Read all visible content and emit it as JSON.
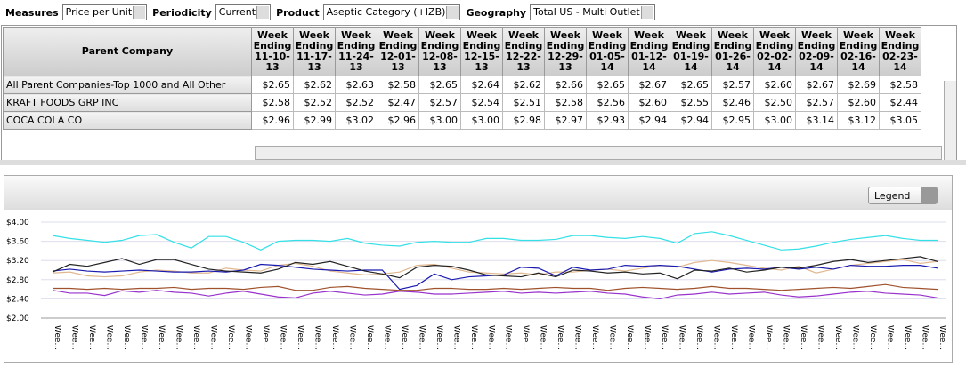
{
  "toolbar": {
    "filters": [
      {
        "label": "Measures",
        "value": "Price per Unit"
      },
      {
        "label": "Periodicity",
        "value": "Current"
      },
      {
        "label": "Product",
        "value": "Aseptic Category (+IZB)"
      },
      {
        "label": "Geography",
        "value": "Total US - Multi Outlet"
      }
    ]
  },
  "table": {
    "corner": "Parent Company",
    "columns": [
      "Week Ending 11-10-13",
      "Week Ending 11-17-13",
      "Week Ending 11-24-13",
      "Week Ending 12-01-13",
      "Week Ending 12-08-13",
      "Week Ending 12-15-13",
      "Week Ending 12-22-13",
      "Week Ending 12-29-13",
      "Week Ending 01-05-14",
      "Week Ending 01-12-14",
      "Week Ending 01-19-14",
      "Week Ending 01-26-14",
      "Week Ending 02-02-14",
      "Week Ending 02-09-14",
      "Week Ending 02-16-14",
      "Week Ending 02-23-14"
    ],
    "rows": [
      {
        "label": "All Parent Companies-Top 1000 and All Other",
        "cells": [
          "$2.65",
          "$2.62",
          "$2.63",
          "$2.58",
          "$2.65",
          "$2.64",
          "$2.62",
          "$2.66",
          "$2.65",
          "$2.67",
          "$2.65",
          "$2.57",
          "$2.60",
          "$2.67",
          "$2.69",
          "$2.58"
        ]
      },
      {
        "label": "KRAFT FOODS GRP INC",
        "cells": [
          "$2.58",
          "$2.52",
          "$2.52",
          "$2.47",
          "$2.57",
          "$2.54",
          "$2.51",
          "$2.58",
          "$2.56",
          "$2.60",
          "$2.55",
          "$2.46",
          "$2.50",
          "$2.57",
          "$2.60",
          "$2.44"
        ]
      },
      {
        "label": "COCA COLA CO",
        "cells": [
          "$2.96",
          "$2.99",
          "$3.02",
          "$2.96",
          "$3.00",
          "$3.00",
          "$2.98",
          "$2.97",
          "$2.93",
          "$2.94",
          "$2.94",
          "$2.95",
          "$3.00",
          "$3.14",
          "$3.12",
          "$3.05"
        ]
      }
    ]
  },
  "legend_button": "Legend",
  "chart_data": {
    "type": "line",
    "categories": [
      "Wee...",
      "Wee...",
      "Wee...",
      "Wee...",
      "Wee...",
      "Wee...",
      "Wee...",
      "Wee...",
      "Wee...",
      "Wee...",
      "Wee...",
      "Wee...",
      "Wee...",
      "Wee...",
      "Wee...",
      "Wee...",
      "Wee...",
      "Wee...",
      "Wee...",
      "Wee...",
      "Wee...",
      "Wee...",
      "Wee...",
      "Wee...",
      "Wee...",
      "Wee...",
      "Wee...",
      "Wee...",
      "Wee...",
      "Wee...",
      "Wee...",
      "Wee...",
      "Wee...",
      "Wee...",
      "Wee...",
      "Wee...",
      "Wee...",
      "Wee...",
      "Wee...",
      "Wee...",
      "Wee...",
      "Wee...",
      "Wee...",
      "Wee...",
      "Wee...",
      "Wee...",
      "Wee...",
      "Wee...",
      "Wee...",
      "Wee...",
      "Wee...",
      "Wee..."
    ],
    "ylim": [
      2.0,
      4.0
    ],
    "yticks": [
      {
        "value": 2.0,
        "label": "$2.00"
      },
      {
        "value": 2.4,
        "label": "$2.40"
      },
      {
        "value": 2.8,
        "label": "$2.80"
      },
      {
        "value": 3.2,
        "label": "$3.20"
      },
      {
        "value": 3.6,
        "label": "$3.60"
      },
      {
        "value": 4.0,
        "label": "$4.00"
      }
    ],
    "grid": true,
    "series": [
      {
        "color": "#33e0e6",
        "values": [
          3.72,
          3.66,
          3.62,
          3.58,
          3.62,
          3.72,
          3.74,
          3.58,
          3.46,
          3.7,
          3.7,
          3.58,
          3.42,
          3.6,
          3.62,
          3.62,
          3.6,
          3.66,
          3.56,
          3.52,
          3.5,
          3.58,
          3.6,
          3.58,
          3.58,
          3.66,
          3.66,
          3.62,
          3.62,
          3.64,
          3.72,
          3.72,
          3.68,
          3.66,
          3.7,
          3.66,
          3.56,
          3.76,
          3.8,
          3.72,
          3.62,
          3.52,
          3.42,
          3.44,
          3.5,
          3.58,
          3.64,
          3.68,
          3.72,
          3.66,
          3.62,
          3.62
        ]
      },
      {
        "color": "#e0b890",
        "values": [
          2.94,
          2.96,
          2.88,
          2.86,
          2.88,
          2.96,
          3.0,
          2.98,
          2.94,
          2.94,
          3.04,
          3.0,
          2.98,
          3.1,
          3.14,
          3.08,
          2.98,
          2.94,
          2.9,
          2.92,
          2.96,
          3.1,
          3.12,
          3.04,
          2.96,
          2.94,
          2.92,
          2.94,
          2.9,
          2.96,
          2.96,
          3.0,
          3.02,
          2.98,
          3.04,
          3.1,
          3.06,
          3.16,
          3.2,
          3.16,
          3.1,
          3.04,
          3.0,
          3.08,
          2.94,
          3.02,
          3.1,
          3.14,
          3.18,
          3.22,
          3.14,
          3.18
        ]
      },
      {
        "color": "#1a1ab0",
        "values": [
          2.98,
          3.02,
          2.98,
          2.96,
          2.98,
          3.0,
          2.98,
          2.96,
          2.96,
          2.98,
          2.96,
          3.0,
          3.12,
          3.1,
          3.06,
          3.02,
          3.0,
          2.98,
          3.0,
          3.0,
          2.6,
          2.68,
          2.92,
          2.8,
          2.86,
          2.88,
          2.9,
          3.06,
          3.04,
          2.88,
          3.06,
          3.0,
          3.02,
          3.1,
          3.08,
          3.1,
          3.08,
          3.02,
          2.96,
          3.02,
          3.04,
          3.02,
          3.06,
          3.02,
          3.06,
          3.02,
          3.1,
          3.08,
          3.08,
          3.1,
          3.1,
          3.04
        ]
      },
      {
        "color": "#222222",
        "values": [
          2.96,
          3.12,
          3.08,
          3.16,
          3.24,
          3.12,
          3.22,
          3.22,
          3.12,
          3.02,
          2.98,
          2.96,
          2.94,
          3.02,
          3.16,
          3.12,
          3.18,
          3.08,
          2.98,
          2.92,
          2.84,
          3.06,
          3.1,
          3.08,
          3.0,
          2.9,
          2.88,
          2.86,
          2.94,
          2.86,
          3.0,
          2.98,
          2.94,
          2.96,
          2.92,
          2.94,
          2.82,
          3.0,
          2.98,
          3.04,
          2.96,
          3.0,
          3.06,
          3.04,
          3.1,
          3.18,
          3.22,
          3.16,
          3.2,
          3.24,
          3.28,
          3.18
        ]
      },
      {
        "color": "#a0522d",
        "values": [
          2.62,
          2.62,
          2.6,
          2.62,
          2.6,
          2.62,
          2.62,
          2.64,
          2.6,
          2.62,
          2.62,
          2.6,
          2.64,
          2.66,
          2.58,
          2.58,
          2.64,
          2.66,
          2.62,
          2.6,
          2.58,
          2.58,
          2.62,
          2.62,
          2.6,
          2.6,
          2.62,
          2.6,
          2.62,
          2.64,
          2.62,
          2.62,
          2.58,
          2.62,
          2.64,
          2.62,
          2.6,
          2.62,
          2.66,
          2.62,
          2.62,
          2.6,
          2.58,
          2.6,
          2.62,
          2.64,
          2.62,
          2.66,
          2.7,
          2.64,
          2.62,
          2.6
        ]
      },
      {
        "color": "#9932cc",
        "values": [
          2.58,
          2.52,
          2.52,
          2.47,
          2.57,
          2.54,
          2.58,
          2.54,
          2.52,
          2.46,
          2.52,
          2.56,
          2.5,
          2.44,
          2.42,
          2.52,
          2.56,
          2.52,
          2.48,
          2.5,
          2.56,
          2.54,
          2.5,
          2.5,
          2.52,
          2.54,
          2.56,
          2.52,
          2.54,
          2.52,
          2.54,
          2.56,
          2.52,
          2.5,
          2.44,
          2.4,
          2.48,
          2.5,
          2.54,
          2.5,
          2.52,
          2.54,
          2.48,
          2.44,
          2.46,
          2.5,
          2.54,
          2.56,
          2.52,
          2.5,
          2.48,
          2.42
        ]
      }
    ]
  }
}
